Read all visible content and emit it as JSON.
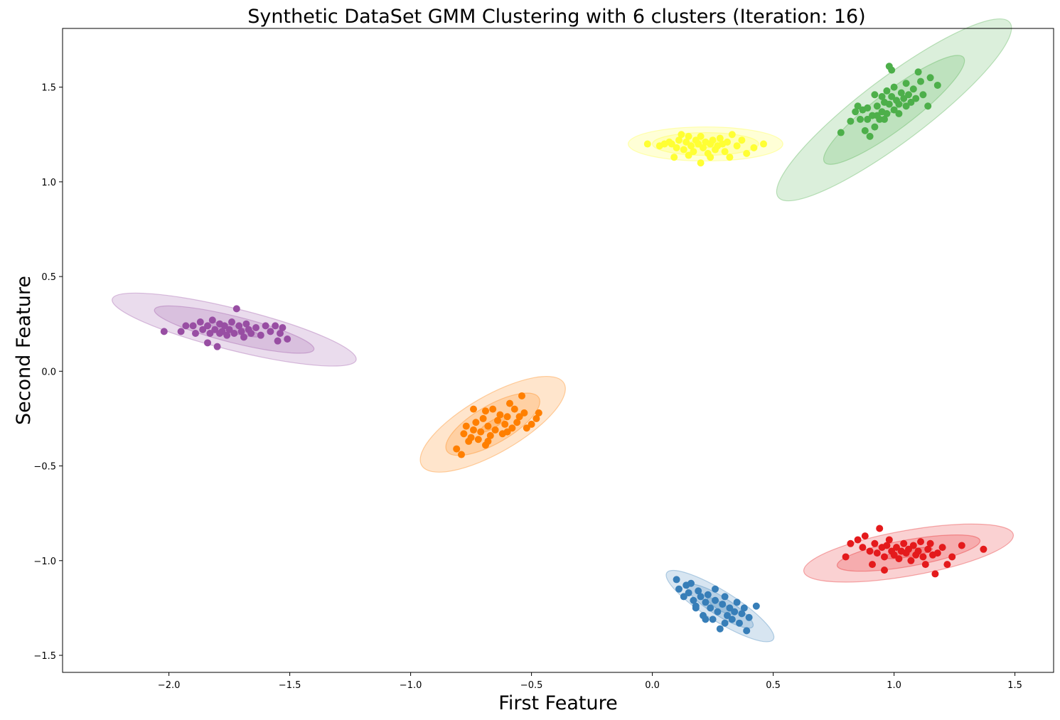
{
  "chart_data": {
    "type": "scatter",
    "title": "Synthetic DataSet GMM Clustering with 6 clusters (Iteration: 16)",
    "xlabel": "First Feature",
    "ylabel": "Second Feature",
    "xlim": [
      -2.44,
      1.66
    ],
    "ylim": [
      -1.59,
      1.81
    ],
    "xticks": [
      -2.0,
      -1.5,
      -1.0,
      -0.5,
      0.0,
      0.5,
      1.0,
      1.5
    ],
    "xtick_labels": [
      "−2.0",
      "−1.5",
      "−1.0",
      "−0.5",
      "0.0",
      "0.5",
      "1.0",
      "1.5"
    ],
    "yticks": [
      -1.5,
      -1.0,
      -0.5,
      0.0,
      0.5,
      1.0,
      1.5
    ],
    "ytick_labels": [
      "−1.5",
      "−1.0",
      "−0.5",
      "0.0",
      "0.5",
      "1.0",
      "1.5"
    ],
    "grid": false,
    "series": [
      {
        "color": "#4daf4a",
        "center": [
          1.0,
          1.38
        ],
        "ellipse_sigma": [
          [
            0.055,
            0.0
          ],
          [
            0.36,
            0.1
          ],
          [
            0.6,
            0.17
          ]
        ],
        "ellipse_angle_deg": 37,
        "points": [
          [
            0.78,
            1.26
          ],
          [
            0.82,
            1.32
          ],
          [
            0.84,
            1.37
          ],
          [
            0.85,
            1.4
          ],
          [
            0.86,
            1.33
          ],
          [
            0.87,
            1.38
          ],
          [
            0.88,
            1.27
          ],
          [
            0.89,
            1.33
          ],
          [
            0.89,
            1.39
          ],
          [
            0.9,
            1.24
          ],
          [
            0.91,
            1.35
          ],
          [
            0.92,
            1.29
          ],
          [
            0.92,
            1.46
          ],
          [
            0.93,
            1.4
          ],
          [
            0.94,
            1.33
          ],
          [
            0.95,
            1.45
          ],
          [
            0.95,
            1.37
          ],
          [
            0.96,
            1.42
          ],
          [
            0.97,
            1.36
          ],
          [
            0.97,
            1.48
          ],
          [
            0.98,
            1.41
          ],
          [
            0.99,
            1.45
          ],
          [
            1.0,
            1.38
          ],
          [
            1.0,
            1.5
          ],
          [
            1.01,
            1.43
          ],
          [
            1.02,
            1.41
          ],
          [
            1.03,
            1.47
          ],
          [
            1.04,
            1.44
          ],
          [
            1.05,
            1.4
          ],
          [
            1.05,
            1.52
          ],
          [
            1.06,
            1.46
          ],
          [
            1.07,
            1.42
          ],
          [
            1.08,
            1.49
          ],
          [
            1.09,
            1.44
          ],
          [
            1.1,
            1.58
          ],
          [
            1.12,
            1.46
          ],
          [
            1.15,
            1.55
          ],
          [
            1.18,
            1.51
          ],
          [
            1.14,
            1.4
          ],
          [
            0.98,
            1.61
          ],
          [
            0.99,
            1.59
          ],
          [
            0.93,
            1.35
          ],
          [
            1.02,
            1.36
          ],
          [
            0.96,
            1.33
          ],
          [
            1.11,
            1.53
          ]
        ]
      },
      {
        "color": "#ffff33",
        "center": [
          0.22,
          1.2
        ],
        "ellipse_sigma": [
          [
            0.07,
            0.02
          ],
          [
            0.22,
            0.06
          ],
          [
            0.32,
            0.09
          ]
        ],
        "ellipse_angle_deg": 0,
        "points": [
          [
            -0.02,
            1.2
          ],
          [
            0.03,
            1.19
          ],
          [
            0.05,
            1.2
          ],
          [
            0.07,
            1.21
          ],
          [
            0.09,
            1.13
          ],
          [
            0.1,
            1.18
          ],
          [
            0.11,
            1.22
          ],
          [
            0.12,
            1.25
          ],
          [
            0.13,
            1.17
          ],
          [
            0.14,
            1.21
          ],
          [
            0.15,
            1.24
          ],
          [
            0.16,
            1.19
          ],
          [
            0.17,
            1.16
          ],
          [
            0.18,
            1.22
          ],
          [
            0.19,
            1.2
          ],
          [
            0.2,
            1.1
          ],
          [
            0.21,
            1.18
          ],
          [
            0.22,
            1.21
          ],
          [
            0.23,
            1.15
          ],
          [
            0.24,
            1.2
          ],
          [
            0.25,
            1.22
          ],
          [
            0.26,
            1.17
          ],
          [
            0.27,
            1.19
          ],
          [
            0.28,
            1.23
          ],
          [
            0.29,
            1.2
          ],
          [
            0.3,
            1.16
          ],
          [
            0.31,
            1.21
          ],
          [
            0.33,
            1.25
          ],
          [
            0.35,
            1.19
          ],
          [
            0.37,
            1.22
          ],
          [
            0.39,
            1.15
          ],
          [
            0.42,
            1.18
          ],
          [
            0.46,
            1.2
          ],
          [
            0.15,
            1.14
          ],
          [
            0.24,
            1.13
          ],
          [
            0.2,
            1.24
          ],
          [
            0.08,
            1.2
          ],
          [
            0.32,
            1.13
          ]
        ]
      },
      {
        "color": "#984ea3",
        "center": [
          -1.73,
          0.22
        ],
        "ellipse_sigma": [
          [
            0.11,
            0.02
          ],
          [
            0.34,
            0.07
          ],
          [
            0.52,
            0.11
          ]
        ],
        "ellipse_angle_deg": -14,
        "points": [
          [
            -2.02,
            0.21
          ],
          [
            -1.95,
            0.21
          ],
          [
            -1.93,
            0.24
          ],
          [
            -1.89,
            0.2
          ],
          [
            -1.87,
            0.26
          ],
          [
            -1.86,
            0.22
          ],
          [
            -1.84,
            0.15
          ],
          [
            -1.84,
            0.24
          ],
          [
            -1.83,
            0.2
          ],
          [
            -1.82,
            0.27
          ],
          [
            -1.81,
            0.22
          ],
          [
            -1.8,
            0.13
          ],
          [
            -1.79,
            0.25
          ],
          [
            -1.78,
            0.21
          ],
          [
            -1.77,
            0.24
          ],
          [
            -1.76,
            0.19
          ],
          [
            -1.75,
            0.22
          ],
          [
            -1.74,
            0.26
          ],
          [
            -1.73,
            0.2
          ],
          [
            -1.72,
            0.33
          ],
          [
            -1.71,
            0.24
          ],
          [
            -1.7,
            0.21
          ],
          [
            -1.69,
            0.18
          ],
          [
            -1.68,
            0.25
          ],
          [
            -1.67,
            0.22
          ],
          [
            -1.66,
            0.2
          ],
          [
            -1.64,
            0.23
          ],
          [
            -1.62,
            0.19
          ],
          [
            -1.6,
            0.24
          ],
          [
            -1.58,
            0.21
          ],
          [
            -1.56,
            0.24
          ],
          [
            -1.55,
            0.16
          ],
          [
            -1.54,
            0.2
          ],
          [
            -1.53,
            0.23
          ],
          [
            -1.51,
            0.17
          ],
          [
            -1.9,
            0.24
          ],
          [
            -1.79,
            0.2
          ]
        ]
      },
      {
        "color": "#ff7f00",
        "center": [
          -0.66,
          -0.28
        ],
        "ellipse_sigma": [
          [
            0.06,
            0.02
          ],
          [
            0.22,
            0.1
          ],
          [
            0.34,
            0.15
          ]
        ],
        "ellipse_angle_deg": 30,
        "points": [
          [
            -0.81,
            -0.41
          ],
          [
            -0.79,
            -0.44
          ],
          [
            -0.78,
            -0.33
          ],
          [
            -0.77,
            -0.29
          ],
          [
            -0.76,
            -0.37
          ],
          [
            -0.75,
            -0.35
          ],
          [
            -0.74,
            -0.31
          ],
          [
            -0.73,
            -0.27
          ],
          [
            -0.72,
            -0.36
          ],
          [
            -0.71,
            -0.32
          ],
          [
            -0.7,
            -0.25
          ],
          [
            -0.69,
            -0.39
          ],
          [
            -0.68,
            -0.29
          ],
          [
            -0.67,
            -0.34
          ],
          [
            -0.66,
            -0.2
          ],
          [
            -0.65,
            -0.31
          ],
          [
            -0.64,
            -0.26
          ],
          [
            -0.63,
            -0.23
          ],
          [
            -0.62,
            -0.33
          ],
          [
            -0.61,
            -0.28
          ],
          [
            -0.6,
            -0.24
          ],
          [
            -0.59,
            -0.17
          ],
          [
            -0.58,
            -0.3
          ],
          [
            -0.57,
            -0.2
          ],
          [
            -0.56,
            -0.27
          ],
          [
            -0.55,
            -0.24
          ],
          [
            -0.54,
            -0.13
          ],
          [
            -0.53,
            -0.22
          ],
          [
            -0.52,
            -0.3
          ],
          [
            -0.5,
            -0.28
          ],
          [
            -0.48,
            -0.25
          ],
          [
            -0.47,
            -0.22
          ],
          [
            -0.74,
            -0.2
          ],
          [
            -0.68,
            -0.37
          ],
          [
            -0.6,
            -0.32
          ],
          [
            -0.69,
            -0.21
          ]
        ]
      },
      {
        "color": "#e41a1c",
        "center": [
          1.06,
          -0.96
        ],
        "ellipse_sigma": [
          [
            0.1,
            0.02
          ],
          [
            0.3,
            0.07
          ],
          [
            0.44,
            0.12
          ]
        ],
        "ellipse_angle_deg": 10,
        "points": [
          [
            0.8,
            -0.98
          ],
          [
            0.82,
            -0.91
          ],
          [
            0.85,
            -0.89
          ],
          [
            0.87,
            -0.93
          ],
          [
            0.88,
            -0.87
          ],
          [
            0.9,
            -0.95
          ],
          [
            0.91,
            -1.02
          ],
          [
            0.92,
            -0.91
          ],
          [
            0.93,
            -0.96
          ],
          [
            0.94,
            -0.83
          ],
          [
            0.95,
            -0.93
          ],
          [
            0.96,
            -1.05
          ],
          [
            0.96,
            -0.98
          ],
          [
            0.97,
            -0.92
          ],
          [
            0.98,
            -0.89
          ],
          [
            0.99,
            -0.95
          ],
          [
            1.0,
            -0.97
          ],
          [
            1.01,
            -0.93
          ],
          [
            1.02,
            -0.99
          ],
          [
            1.03,
            -0.95
          ],
          [
            1.04,
            -0.91
          ],
          [
            1.05,
            -0.96
          ],
          [
            1.06,
            -0.94
          ],
          [
            1.07,
            -1.0
          ],
          [
            1.08,
            -0.92
          ],
          [
            1.09,
            -0.97
          ],
          [
            1.1,
            -0.95
          ],
          [
            1.11,
            -0.9
          ],
          [
            1.12,
            -0.98
          ],
          [
            1.14,
            -0.94
          ],
          [
            1.15,
            -0.91
          ],
          [
            1.16,
            -0.97
          ],
          [
            1.17,
            -1.07
          ],
          [
            1.18,
            -0.96
          ],
          [
            1.2,
            -0.93
          ],
          [
            1.22,
            -1.02
          ],
          [
            1.24,
            -0.98
          ],
          [
            1.28,
            -0.92
          ],
          [
            1.37,
            -0.94
          ],
          [
            1.13,
            -1.02
          ]
        ]
      },
      {
        "color": "#377eb8",
        "center": [
          0.28,
          -1.24
        ],
        "ellipse_sigma": [
          [
            0.06,
            0.02
          ],
          [
            0.16,
            0.05
          ],
          [
            0.26,
            0.08
          ]
        ],
        "ellipse_angle_deg": -32,
        "points": [
          [
            0.1,
            -1.1
          ],
          [
            0.11,
            -1.15
          ],
          [
            0.13,
            -1.19
          ],
          [
            0.14,
            -1.13
          ],
          [
            0.15,
            -1.17
          ],
          [
            0.16,
            -1.12
          ],
          [
            0.17,
            -1.21
          ],
          [
            0.18,
            -1.25
          ],
          [
            0.19,
            -1.16
          ],
          [
            0.2,
            -1.19
          ],
          [
            0.21,
            -1.29
          ],
          [
            0.22,
            -1.22
          ],
          [
            0.23,
            -1.18
          ],
          [
            0.24,
            -1.25
          ],
          [
            0.25,
            -1.31
          ],
          [
            0.26,
            -1.21
          ],
          [
            0.27,
            -1.27
          ],
          [
            0.28,
            -1.36
          ],
          [
            0.29,
            -1.23
          ],
          [
            0.3,
            -1.19
          ],
          [
            0.31,
            -1.29
          ],
          [
            0.32,
            -1.25
          ],
          [
            0.33,
            -1.31
          ],
          [
            0.34,
            -1.27
          ],
          [
            0.35,
            -1.22
          ],
          [
            0.36,
            -1.33
          ],
          [
            0.37,
            -1.28
          ],
          [
            0.38,
            -1.25
          ],
          [
            0.39,
            -1.37
          ],
          [
            0.4,
            -1.3
          ],
          [
            0.43,
            -1.24
          ],
          [
            0.22,
            -1.31
          ],
          [
            0.3,
            -1.33
          ],
          [
            0.18,
            -1.24
          ],
          [
            0.26,
            -1.15
          ]
        ]
      }
    ]
  }
}
